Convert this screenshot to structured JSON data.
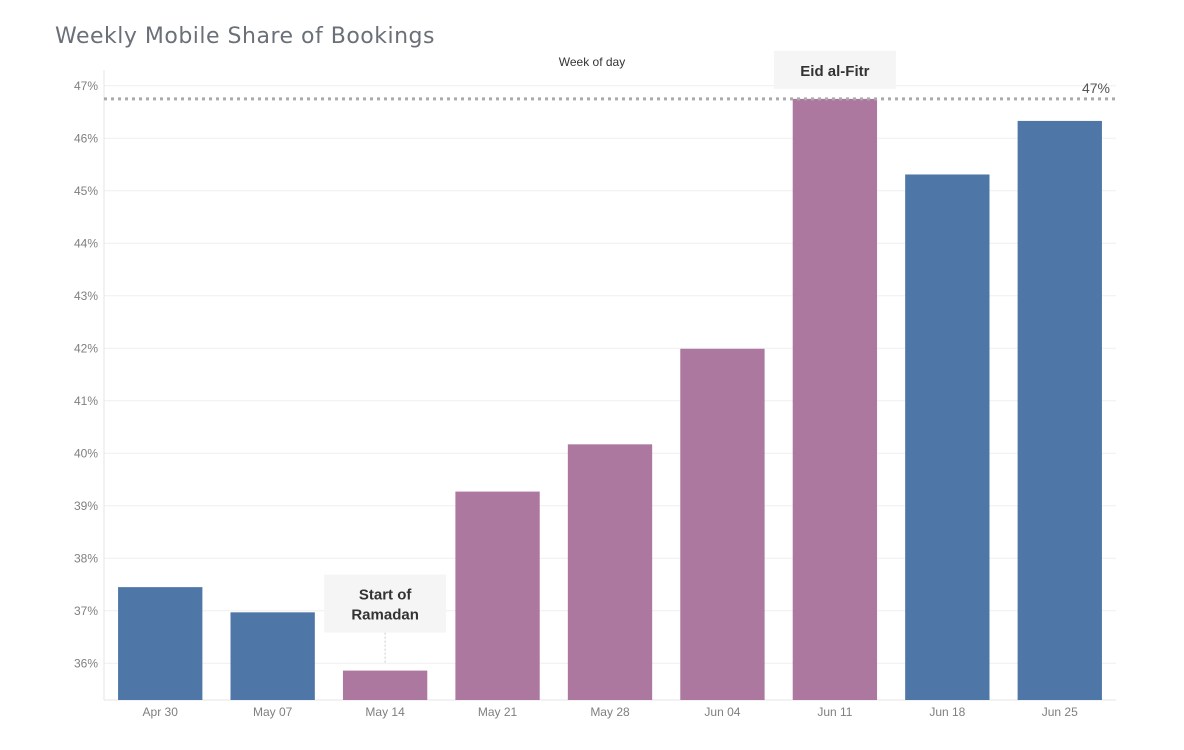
{
  "chart_data": {
    "type": "bar",
    "title": "Weekly Mobile Share of Bookings",
    "xlabel": "Week of day",
    "ylabel": "",
    "categories": [
      "Apr 30",
      "May 07",
      "May 14",
      "May 21",
      "May 28",
      "Jun 04",
      "Jun 11",
      "Jun 18",
      "Jun 25"
    ],
    "values": [
      37.45,
      36.97,
      35.86,
      39.27,
      40.17,
      41.99,
      46.75,
      45.31,
      46.33
    ],
    "highlight": [
      false,
      false,
      true,
      true,
      true,
      true,
      true,
      false,
      false
    ],
    "colors": {
      "normal": "#4e77a8",
      "highlight": "#ad789f",
      "reference_line": "#aaaaaa"
    },
    "ylim": [
      35.3,
      47.3
    ],
    "yticks": [
      36,
      37,
      38,
      39,
      40,
      41,
      42,
      43,
      44,
      45,
      46,
      47
    ],
    "ytick_suffix": "%",
    "reference_line": {
      "value": 46.75,
      "label": "47%"
    },
    "annotations": [
      {
        "category": "May 14",
        "lines": [
          "Start of",
          "Ramadan"
        ]
      },
      {
        "category": "Jun 11",
        "lines": [
          "Eid al-Fitr"
        ]
      }
    ],
    "grid": true
  }
}
